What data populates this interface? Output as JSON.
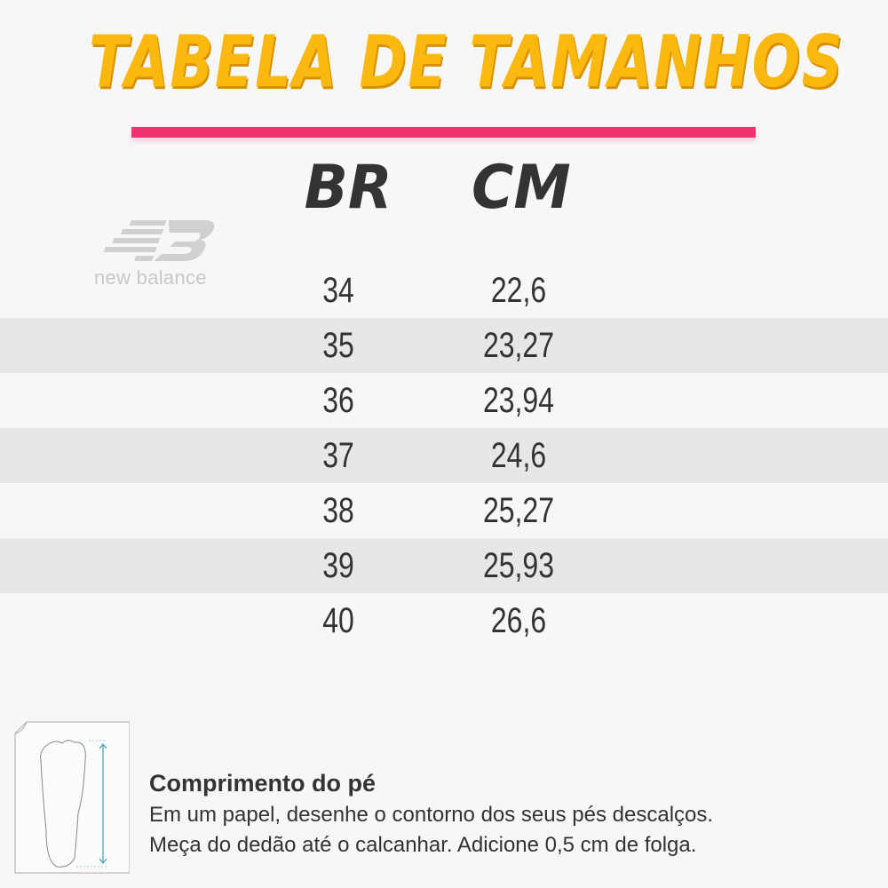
{
  "title": "TABELA DE TAMANHOS",
  "colors": {
    "title": "#fbb80f",
    "accent_bar": "#f0336f",
    "stripe": "#e7e7e7",
    "measure_arrow": "#4aa8c0"
  },
  "brand": {
    "name": "new balance",
    "icon": "new-balance-logo"
  },
  "table": {
    "headers": [
      "BR",
      "CM"
    ],
    "rows": [
      [
        "34",
        "22,6"
      ],
      [
        "35",
        "23,27"
      ],
      [
        "36",
        "23,94"
      ],
      [
        "37",
        "24,6"
      ],
      [
        "38",
        "25,27"
      ],
      [
        "39",
        "25,93"
      ],
      [
        "40",
        "26,6"
      ]
    ]
  },
  "hint": {
    "icon": "foot-on-paper-icon",
    "title": "Comprimento do pé",
    "lines": [
      "Em um papel, desenhe o contorno dos seus pés descalços.",
      "Meça do dedão até o calcanhar. Adicione 0,5 cm de folga."
    ]
  }
}
